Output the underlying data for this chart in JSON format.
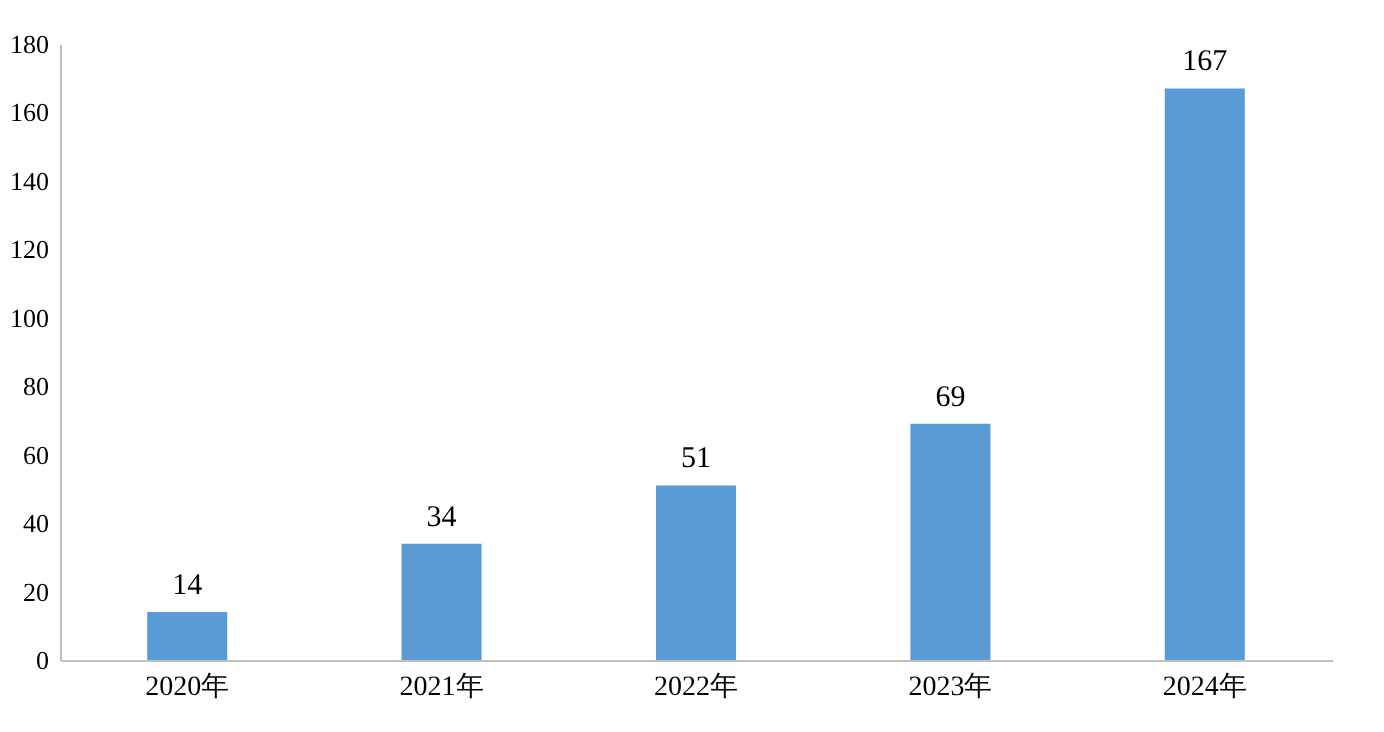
{
  "chart_data": {
    "type": "bar",
    "categories": [
      "2020年",
      "2021年",
      "2022年",
      "2023年",
      "2024年"
    ],
    "values": [
      14,
      34,
      51,
      69,
      167
    ],
    "color": "#5b9bd5",
    "ylim": [
      0,
      180
    ],
    "yticks": [
      0,
      20,
      40,
      60,
      80,
      100,
      120,
      140,
      160,
      180
    ],
    "grid": false,
    "data_labels": true
  }
}
